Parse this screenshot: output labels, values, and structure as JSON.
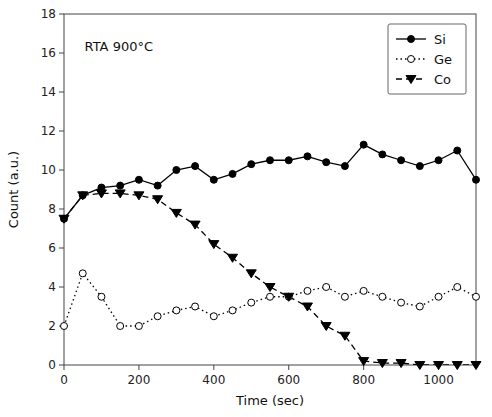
{
  "chart_data": {
    "type": "line",
    "x_label": "Time (sec)",
    "y_label": "Count (a.u.)",
    "annotations": [
      "RTA 900°C"
    ],
    "x": [
      0,
      50,
      100,
      150,
      200,
      250,
      300,
      350,
      400,
      450,
      500,
      550,
      600,
      650,
      700,
      750,
      800,
      850,
      900,
      950,
      1000,
      1050,
      1100
    ],
    "series": [
      {
        "name": "Si",
        "color": "#000000",
        "marker": "circle",
        "line_style": "solid",
        "values": [
          7.5,
          8.7,
          9.1,
          9.2,
          9.5,
          9.2,
          10.0,
          10.2,
          9.5,
          9.8,
          10.3,
          10.5,
          10.5,
          10.7,
          10.4,
          10.2,
          11.3,
          10.8,
          10.5,
          10.2,
          10.5,
          11.0,
          9.5
        ]
      },
      {
        "name": "Ge",
        "color": "#000000",
        "marker": "open-circle",
        "line_style": "dotted",
        "values": [
          2.0,
          4.7,
          3.5,
          2.0,
          2.0,
          2.5,
          2.8,
          3.0,
          2.5,
          2.8,
          3.2,
          3.5,
          3.5,
          3.8,
          4.0,
          3.5,
          3.8,
          3.5,
          3.2,
          3.0,
          3.5,
          4.0,
          3.5
        ]
      },
      {
        "name": "Co",
        "color": "#000000",
        "marker": "triangle-down",
        "line_style": "dashed",
        "values": [
          7.5,
          8.7,
          8.8,
          8.8,
          8.7,
          8.5,
          7.8,
          7.2,
          6.2,
          5.5,
          4.7,
          4.0,
          3.5,
          3.0,
          2.0,
          1.5,
          0.2,
          0.1,
          0.1,
          0.0,
          0.0,
          0.0,
          0.0
        ]
      }
    ],
    "xlim": [
      0,
      1100
    ],
    "ylim": [
      0,
      18
    ],
    "xticks": [
      0,
      200,
      400,
      600,
      800,
      1000
    ],
    "yticks": [
      0,
      2,
      4,
      6,
      8,
      10,
      12,
      14,
      16,
      18
    ],
    "grid": false,
    "legend": "upper right"
  }
}
